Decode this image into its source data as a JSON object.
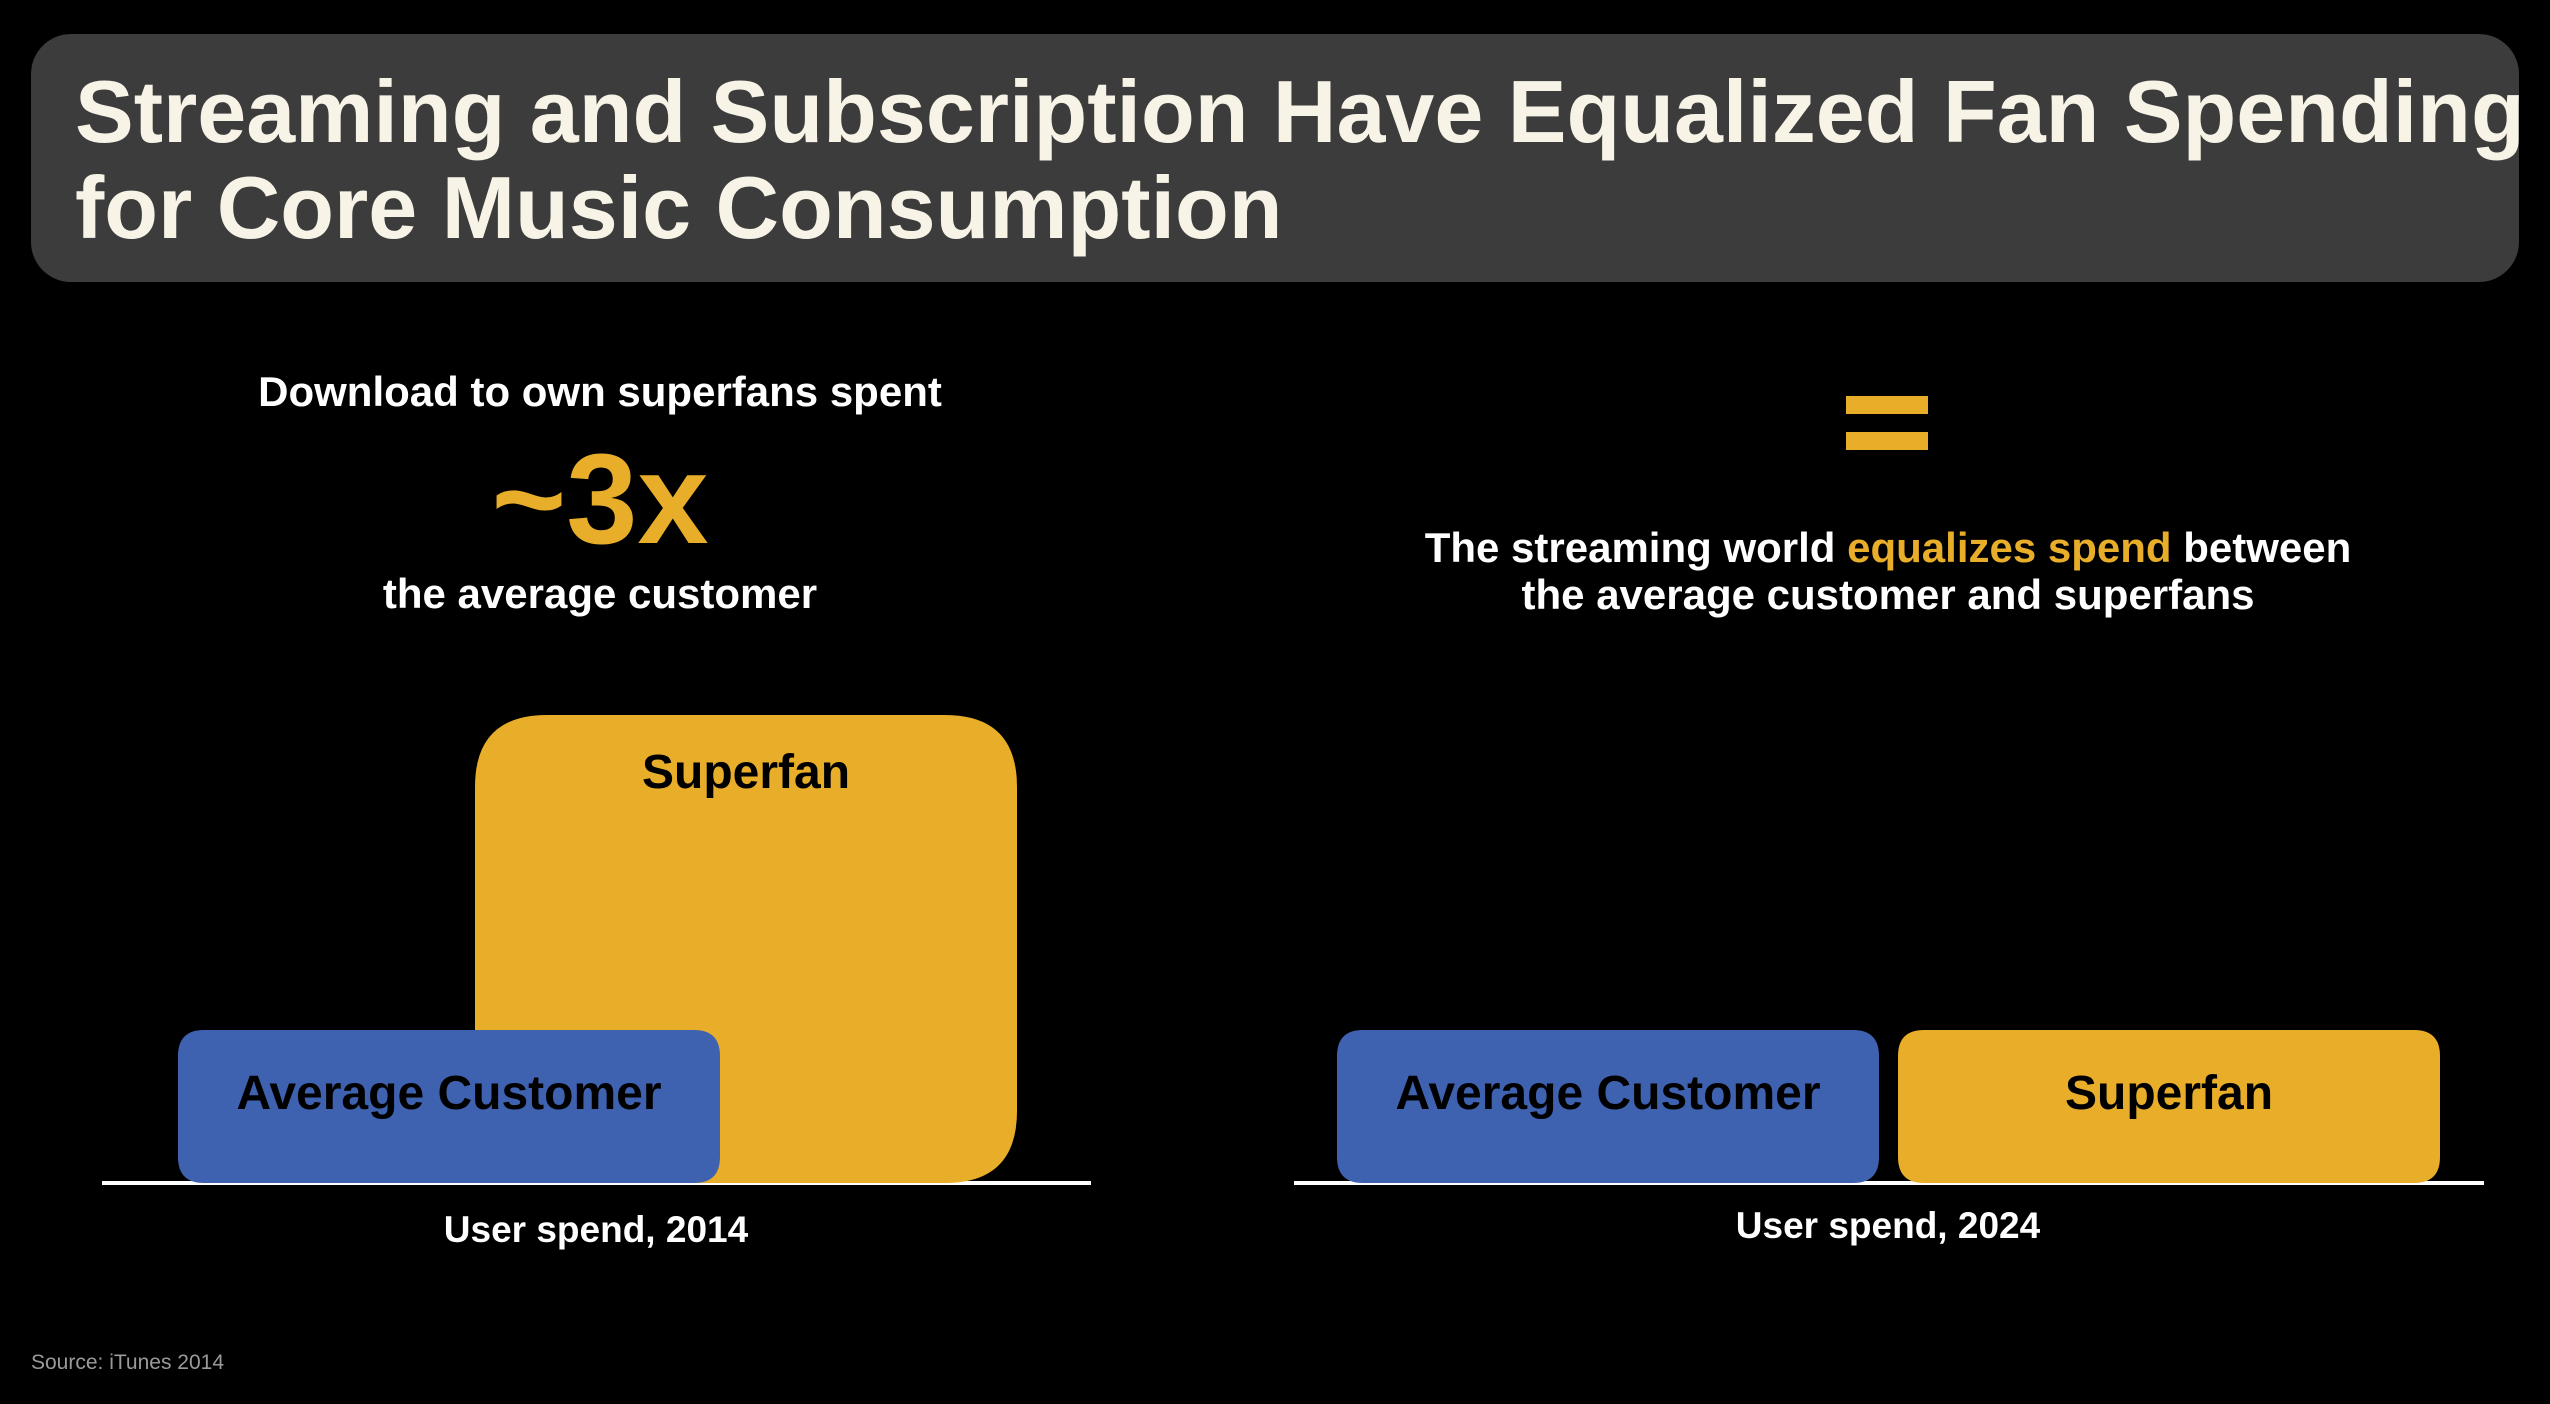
{
  "title": {
    "line1": "Streaming and Subscription Have Equalized Fan Spending",
    "line2": "for Core Music Consumption"
  },
  "left_panel": {
    "header_top": "Download to own superfans spent",
    "multiplier": "~3x",
    "header_bottom": "the average customer"
  },
  "right_panel": {
    "message_line1_pre": "The streaming world ",
    "message_line1_highlight": "equalizes spend",
    "message_line1_post": " between",
    "message_line2": "the average customer and superfans"
  },
  "source": "Source: iTunes 2014",
  "colors": {
    "background": "#000000",
    "banner": "#3c3c3c",
    "title_text": "#f7f3e6",
    "average_customer": "#3f62b0",
    "superfan": "#e9ae29",
    "axis": "#ffffff"
  },
  "icons": {
    "equals": "equals-sign-icon"
  },
  "chart_data": [
    {
      "type": "bar",
      "xlabel": "User spend, 2014",
      "categories": [
        "Average Customer",
        "Superfan"
      ],
      "values": [
        1,
        3
      ],
      "layout": "overlapping"
    },
    {
      "type": "bar",
      "xlabel": "User spend, 2024",
      "categories": [
        "Average Customer",
        "Superfan"
      ],
      "values": [
        1,
        1
      ],
      "layout": "side-by-side"
    }
  ]
}
